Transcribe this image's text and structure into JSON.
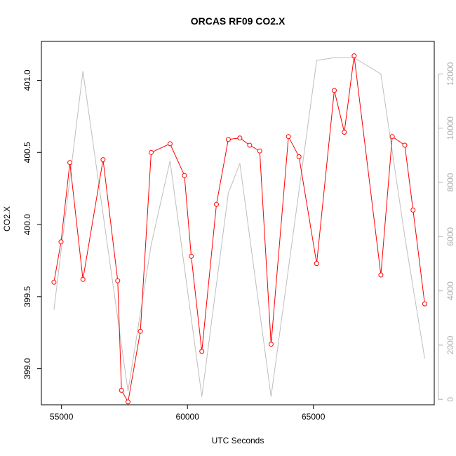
{
  "chart_data": {
    "type": "line",
    "title": "ORCAS RF09 CO2.X",
    "xlabel": "UTC Seconds",
    "ylabel": "CO2.X",
    "ylabel_right": "",
    "xlim": [
      54200,
      69800
    ],
    "ylim": [
      398.75,
      401.27
    ],
    "ylim_right": [
      -200,
      13200
    ],
    "x_ticks": [
      55000,
      60000,
      65000
    ],
    "y_ticks": [
      399.0,
      399.5,
      400.0,
      400.5,
      401.0
    ],
    "y_ticks_right": [
      0,
      2000,
      4000,
      6000,
      8000,
      10000,
      12000
    ],
    "series": [
      {
        "color": "#ff0000",
        "axis": "left",
        "marker": "open-circle",
        "x": [
          54700,
          54980,
          55330,
          55850,
          56650,
          57230,
          57380,
          57640,
          58130,
          58560,
          59310,
          59880,
          60150,
          60570,
          61150,
          61620,
          62080,
          62470,
          62870,
          63320,
          64010,
          64430,
          65130,
          65830,
          66230,
          66620,
          67680,
          68130,
          68630,
          68960,
          69420
        ],
        "y": [
          399.6,
          399.88,
          400.43,
          399.62,
          400.45,
          399.61,
          398.85,
          398.77,
          399.26,
          400.5,
          400.56,
          400.34,
          399.78,
          399.12,
          400.14,
          400.59,
          400.6,
          400.55,
          400.51,
          399.17,
          400.61,
          400.47,
          399.73,
          400.93,
          400.64,
          401.17,
          399.65,
          400.61,
          400.55,
          400.1,
          399.45
        ]
      },
      {
        "color": "#bebebe",
        "axis": "right",
        "marker": "none",
        "x": [
          54700,
          55850,
          57640,
          58560,
          59310,
          60570,
          61620,
          62080,
          63320,
          65130,
          65830,
          66620,
          67680,
          68630,
          69420
        ],
        "y": [
          3300,
          12100,
          300,
          5700,
          8800,
          100,
          7600,
          8700,
          100,
          12500,
          12600,
          12600,
          12000,
          6000,
          1500
        ]
      }
    ],
    "grid": false,
    "legend": "none"
  }
}
